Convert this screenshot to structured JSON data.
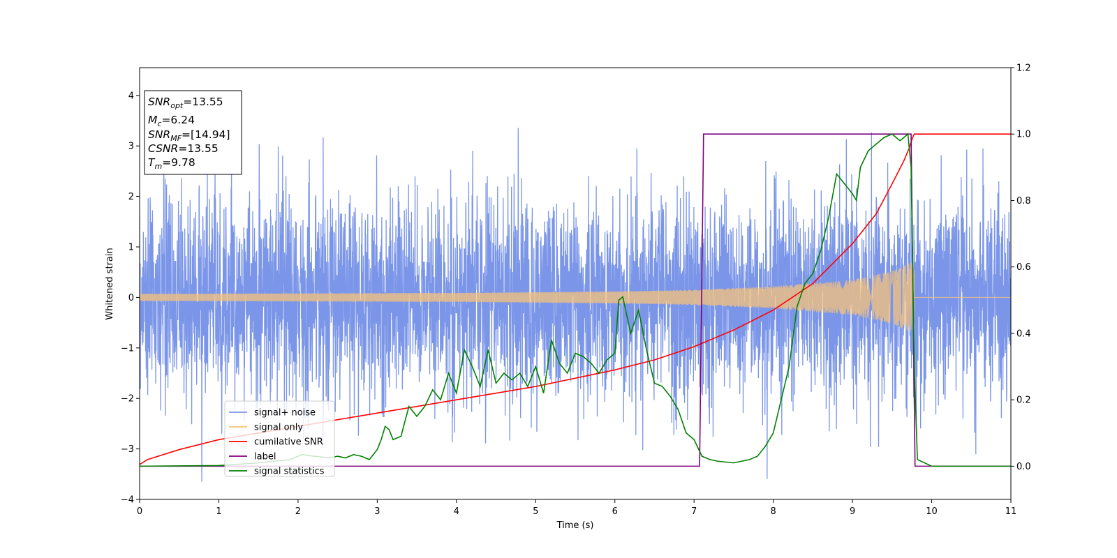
{
  "chart_data": {
    "type": "line",
    "xlabel": "Time (s)",
    "ylabel": "Whitened strain",
    "xlim": [
      0,
      11
    ],
    "ylim_left": [
      -4,
      4.55
    ],
    "ylim_right": [
      -0.1,
      1.2
    ],
    "x_ticks": [
      "0",
      "1",
      "2",
      "3",
      "4",
      "5",
      "6",
      "7",
      "8",
      "9",
      "10",
      "11"
    ],
    "y_ticks_left": [
      "−4",
      "−3",
      "−2",
      "−1",
      "0",
      "1",
      "2",
      "3",
      "4"
    ],
    "y_ticks_right": [
      "0.0",
      "0.2",
      "0.4",
      "0.6",
      "0.8",
      "1.0",
      "1.2"
    ],
    "grid": false,
    "legend_position": "lower-left",
    "info_box": {
      "lines": [
        {
          "main": "SNR",
          "sub": "opt",
          "value": "=13.55"
        },
        {
          "main": "M",
          "sub": "c",
          "value": "=6.24"
        },
        {
          "main": "SNR",
          "sub": "MF",
          "value": "=[14.94]"
        },
        {
          "main": "CSNR",
          "sub": "",
          "value": "=13.55"
        },
        {
          "main": "T",
          "sub": "m",
          "value": "=9.78"
        }
      ]
    },
    "series": [
      {
        "name": "signal+ noise",
        "color": "#7b96e8",
        "axis": "left",
        "description_kind": "noise",
        "amplitude_sigma": 1.0,
        "range_approx": [
          -3.65,
          4.15
        ]
      },
      {
        "name": "signal only",
        "color": "#f5c27a",
        "axis": "left",
        "description_kind": "chirp",
        "x_end": 9.78,
        "envelope": [
          [
            0,
            0.07
          ],
          [
            2,
            0.08
          ],
          [
            4,
            0.09
          ],
          [
            6,
            0.12
          ],
          [
            7,
            0.15
          ],
          [
            8,
            0.22
          ],
          [
            9,
            0.35
          ],
          [
            9.5,
            0.52
          ],
          [
            9.78,
            0.72
          ]
        ]
      },
      {
        "name": "cumilative SNR",
        "color": "#ff0000",
        "axis": "right",
        "x": [
          0,
          0.1,
          0.5,
          1,
          2,
          3,
          4,
          5,
          6,
          6.5,
          7,
          7.5,
          8,
          8.5,
          9,
          9.3,
          9.5,
          9.65,
          9.72,
          9.76,
          9.78,
          11
        ],
        "y": [
          0.005,
          0.02,
          0.05,
          0.08,
          0.12,
          0.16,
          0.2,
          0.24,
          0.29,
          0.32,
          0.36,
          0.41,
          0.47,
          0.55,
          0.67,
          0.76,
          0.85,
          0.92,
          0.96,
          0.99,
          1.0,
          1.0
        ]
      },
      {
        "name": "label",
        "color": "#800080",
        "axis": "right",
        "x": [
          0,
          7.07,
          7.12,
          9.74,
          9.79,
          11
        ],
        "y": [
          0,
          0,
          1,
          1,
          0,
          0
        ]
      },
      {
        "name": "signal statistics",
        "color": "#008000",
        "axis": "right",
        "x": [
          0,
          1,
          1.5,
          1.9,
          2.05,
          2.2,
          2.4,
          2.5,
          2.6,
          2.7,
          2.8,
          2.9,
          3.0,
          3.05,
          3.1,
          3.15,
          3.2,
          3.3,
          3.4,
          3.5,
          3.6,
          3.7,
          3.8,
          3.9,
          4.0,
          4.1,
          4.2,
          4.3,
          4.4,
          4.5,
          4.6,
          4.7,
          4.8,
          4.9,
          5.0,
          5.1,
          5.2,
          5.3,
          5.4,
          5.5,
          5.6,
          5.7,
          5.8,
          5.9,
          6.0,
          6.05,
          6.1,
          6.2,
          6.3,
          6.4,
          6.5,
          6.6,
          6.7,
          6.8,
          6.9,
          7.0,
          7.1,
          7.2,
          7.3,
          7.5,
          7.7,
          7.8,
          7.9,
          8.0,
          8.1,
          8.2,
          8.3,
          8.4,
          8.5,
          8.6,
          8.7,
          8.8,
          8.9,
          9.0,
          9.05,
          9.1,
          9.2,
          9.3,
          9.4,
          9.5,
          9.6,
          9.7,
          9.74,
          9.78,
          9.82,
          10.0,
          11.0
        ],
        "y": [
          0.0,
          0.002,
          0.01,
          0.02,
          0.035,
          0.03,
          0.025,
          0.03,
          0.025,
          0.035,
          0.03,
          0.02,
          0.05,
          0.08,
          0.12,
          0.11,
          0.08,
          0.09,
          0.18,
          0.15,
          0.18,
          0.23,
          0.2,
          0.28,
          0.22,
          0.35,
          0.3,
          0.24,
          0.35,
          0.25,
          0.28,
          0.26,
          0.28,
          0.24,
          0.3,
          0.22,
          0.38,
          0.31,
          0.28,
          0.34,
          0.33,
          0.31,
          0.28,
          0.32,
          0.34,
          0.5,
          0.51,
          0.4,
          0.47,
          0.35,
          0.25,
          0.24,
          0.21,
          0.17,
          0.1,
          0.08,
          0.03,
          0.02,
          0.015,
          0.01,
          0.02,
          0.03,
          0.06,
          0.1,
          0.2,
          0.3,
          0.48,
          0.55,
          0.58,
          0.65,
          0.75,
          0.88,
          0.85,
          0.82,
          0.8,
          0.9,
          0.95,
          0.97,
          0.99,
          1.0,
          0.98,
          1.0,
          0.9,
          0.3,
          0.02,
          0.0,
          0.0
        ]
      }
    ]
  }
}
